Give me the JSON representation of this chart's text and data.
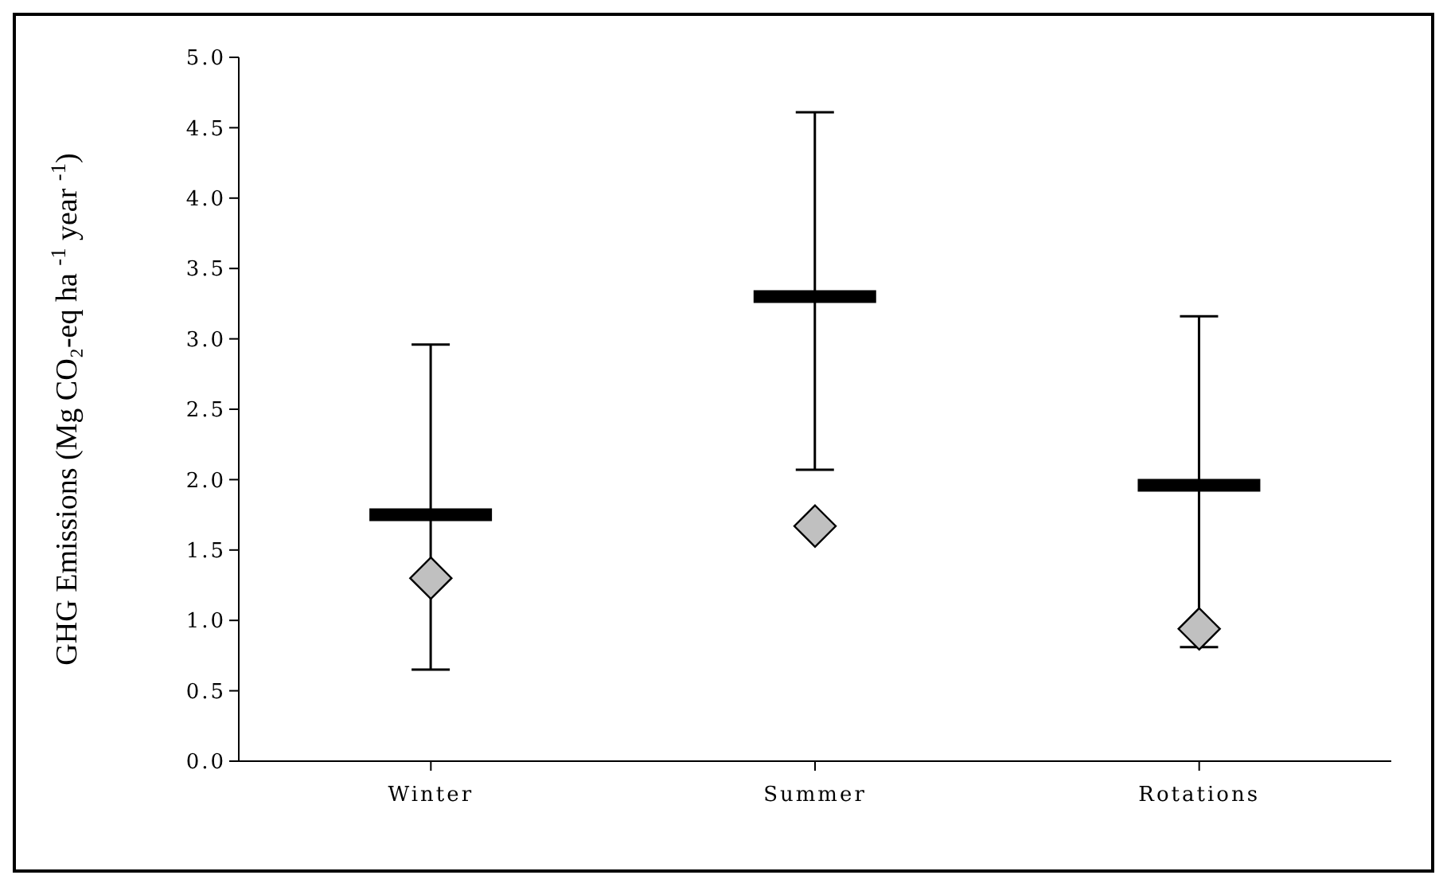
{
  "chart_data": {
    "type": "bar",
    "ylabel": "GHG Emissions (Mg CO₂-eq ha $^{-1}$ year $^{-1}$)",
    "categories": [
      "Winter",
      "Summer",
      "Rotations"
    ],
    "series": [
      {
        "color": "#ffffff",
        "values": [
          1.75,
          3.3,
          1.96
        ],
        "errors": [
          [
            0.65,
            2.96
          ],
          [
            2.07,
            4.61
          ],
          [
            0.81,
            3.16
          ]
        ]
      },
      {
        "type": "scatter",
        "color": "#c0c0c0",
        "marker": "diamond",
        "values": [
          1.3,
          1.67,
          0.94
        ]
      }
    ],
    "ylim": [
      0,
      5
    ],
    "yticks": [
      {
        "value": 0,
        "label": "0.0"
      },
      {
        "value": 0.5,
        "label": "0.5"
      },
      {
        "value": 1,
        "label": "1.0"
      },
      {
        "value": 1.5,
        "label": "1.5"
      },
      {
        "value": 2,
        "label": "2.0"
      },
      {
        "value": 2.5,
        "label": "2.5"
      },
      {
        "value": 3,
        "label": "3.0"
      },
      {
        "value": 3.5,
        "label": "3.5"
      },
      {
        "value": 4,
        "label": "4.0"
      },
      {
        "value": 4.5,
        "label": "4.5"
      },
      {
        "value": 5,
        "label": "5.0"
      }
    ],
    "grid": false,
    "legend": false
  }
}
